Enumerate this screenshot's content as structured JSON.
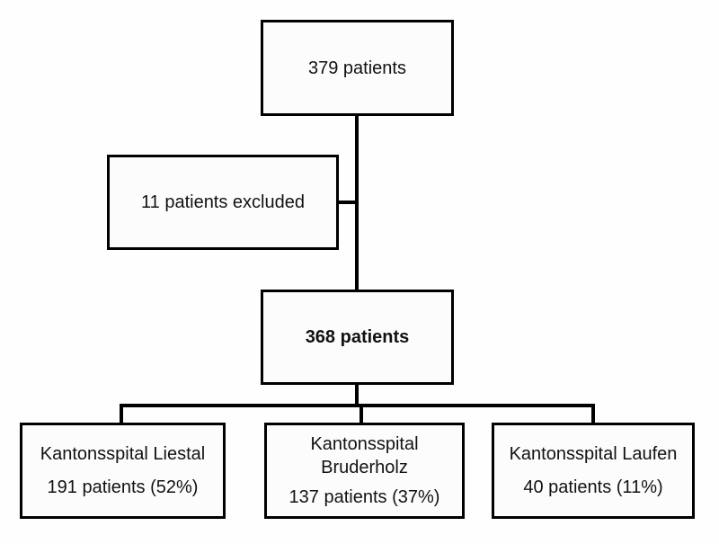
{
  "diagram": {
    "colors": {
      "background": "#ffffff",
      "box_fill": "#fdfcfd",
      "border": "#000000",
      "line": "#000000",
      "text": "#121212"
    },
    "nodes": {
      "total": {
        "label": "379 patients"
      },
      "excluded": {
        "label": "11 patients excluded"
      },
      "included": {
        "label": "368 patients",
        "bold": true
      },
      "sites": [
        {
          "name": "Kantonsspital Liestal",
          "count": "191 patients (52%)"
        },
        {
          "name": "Kantonsspital Bruderholz",
          "count": "137 patients (37%)"
        },
        {
          "name": "Kantonsspital Laufen",
          "count": "40 patients (11%)"
        }
      ]
    }
  }
}
